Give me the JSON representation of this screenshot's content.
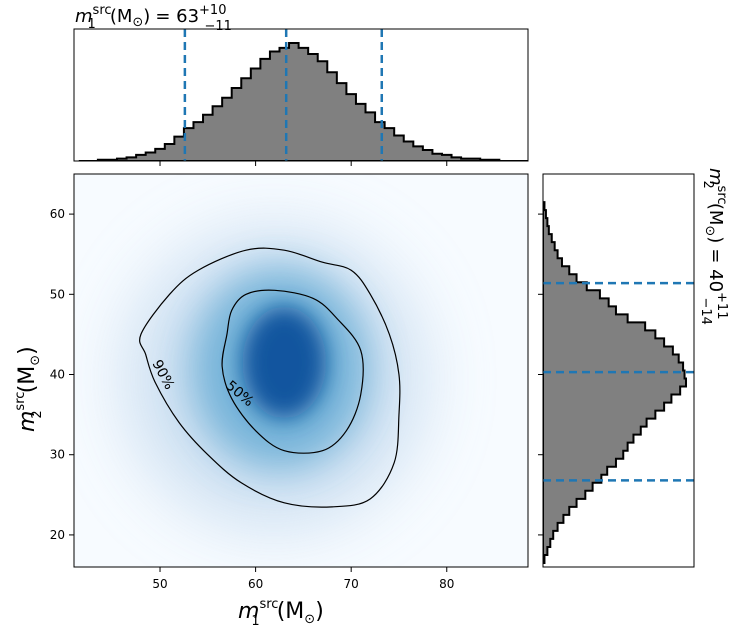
{
  "chart_data": [
    {
      "type": "area",
      "panel": "top-marginal",
      "title": {
        "var": "m",
        "sub": "1",
        "sup": "src",
        "unit": "(M",
        "sun_sub": "⊙",
        "unit_close": ")",
        "eq": "= 63",
        "err_plus": "+10",
        "err_minus": "−11"
      },
      "x": [
        42,
        43,
        44,
        45,
        46,
        47,
        48,
        49,
        50,
        51,
        52,
        53,
        54,
        55,
        56,
        57,
        58,
        59,
        60,
        61,
        62,
        63,
        64,
        65,
        66,
        67,
        68,
        69,
        70,
        71,
        72,
        73,
        74,
        75,
        76,
        77,
        78,
        79,
        80,
        81,
        82,
        83,
        84,
        85,
        86,
        87,
        88
      ],
      "density": [
        0.0,
        0.0,
        0.01,
        0.01,
        0.02,
        0.03,
        0.05,
        0.07,
        0.1,
        0.14,
        0.2,
        0.27,
        0.32,
        0.38,
        0.45,
        0.52,
        0.6,
        0.68,
        0.76,
        0.84,
        0.9,
        0.93,
        0.97,
        0.93,
        0.88,
        0.82,
        0.73,
        0.64,
        0.55,
        0.47,
        0.4,
        0.32,
        0.27,
        0.21,
        0.16,
        0.12,
        0.09,
        0.06,
        0.05,
        0.03,
        0.02,
        0.02,
        0.01,
        0.01,
        0.0,
        0.0,
        0.0
      ],
      "quantile_lines": [
        52.6,
        63.2,
        73.2
      ],
      "xlim": [
        41,
        88.5
      ]
    },
    {
      "type": "heatmap",
      "panel": "joint",
      "xlabel": {
        "var": "m",
        "sub": "1",
        "sup": "src",
        "unit": "(M",
        "sun_sub": "⊙",
        "unit_close": ")"
      },
      "ylabel": {
        "var": "m",
        "sub": "2",
        "sup": "src",
        "unit": "(M",
        "sun_sub": "⊙",
        "unit_close": ")"
      },
      "xlim": [
        41,
        88.5
      ],
      "ylim": [
        16,
        65
      ],
      "x_ticks": [
        "50",
        "60",
        "70",
        "80"
      ],
      "y_ticks": [
        "20",
        "30",
        "40",
        "50",
        "60"
      ],
      "peak": {
        "x": 63,
        "y": 42
      },
      "contours": [
        {
          "label": "50%",
          "points": [
            [
              57,
              45
            ],
            [
              57.5,
              48
            ],
            [
              59,
              50
            ],
            [
              62,
              50.5
            ],
            [
              66,
              49.5
            ],
            [
              68.5,
              47
            ],
            [
              71,
              43
            ],
            [
              71,
              37.5
            ],
            [
              69.5,
              33
            ],
            [
              67,
              30.5
            ],
            [
              63,
              30.5
            ],
            [
              60,
              33
            ],
            [
              57.5,
              37
            ],
            [
              56.5,
              41
            ]
          ]
        },
        {
          "label": "90%",
          "points": [
            [
              48,
              45
            ],
            [
              51,
              50
            ],
            [
              54,
              53
            ],
            [
              59,
              55.5
            ],
            [
              63,
              55.5
            ],
            [
              67,
              54
            ],
            [
              70,
              53
            ],
            [
              72,
              50
            ],
            [
              74,
              45
            ],
            [
              75,
              40
            ],
            [
              75,
              35
            ],
            [
              74.5,
              29
            ],
            [
              72,
              24.5
            ],
            [
              68,
              23.5
            ],
            [
              63,
              24
            ],
            [
              58.5,
              26.5
            ],
            [
              55,
              30
            ],
            [
              52,
              34
            ],
            [
              49.5,
              39
            ],
            [
              48.5,
              42.5
            ]
          ]
        }
      ]
    },
    {
      "type": "area",
      "panel": "right-marginal",
      "title": {
        "var": "m",
        "sub": "2",
        "sup": "src",
        "unit": "(M",
        "sun_sub": "⊙",
        "unit_close": ")",
        "eq": "= 40",
        "err_plus": "+11",
        "err_minus": "−14"
      },
      "y": [
        17,
        18,
        19,
        20,
        21,
        22,
        23,
        24,
        25,
        26,
        27,
        28,
        29,
        30,
        31,
        32,
        33,
        34,
        35,
        36,
        37,
        38,
        39,
        40,
        41,
        42,
        43,
        44,
        45,
        46,
        47,
        48,
        49,
        50,
        51,
        52,
        53,
        54,
        55,
        56,
        57,
        58,
        59,
        60,
        61
      ],
      "density": [
        0.01,
        0.03,
        0.05,
        0.07,
        0.1,
        0.14,
        0.18,
        0.23,
        0.29,
        0.34,
        0.4,
        0.44,
        0.5,
        0.55,
        0.58,
        0.62,
        0.67,
        0.71,
        0.77,
        0.83,
        0.88,
        0.94,
        0.98,
        0.97,
        0.96,
        0.93,
        0.89,
        0.83,
        0.77,
        0.7,
        0.58,
        0.5,
        0.45,
        0.39,
        0.3,
        0.23,
        0.18,
        0.13,
        0.1,
        0.08,
        0.06,
        0.04,
        0.03,
        0.02,
        0.01
      ],
      "quantile_lines": [
        26.8,
        40.3,
        51.4
      ],
      "ylim": [
        16,
        65
      ]
    }
  ]
}
